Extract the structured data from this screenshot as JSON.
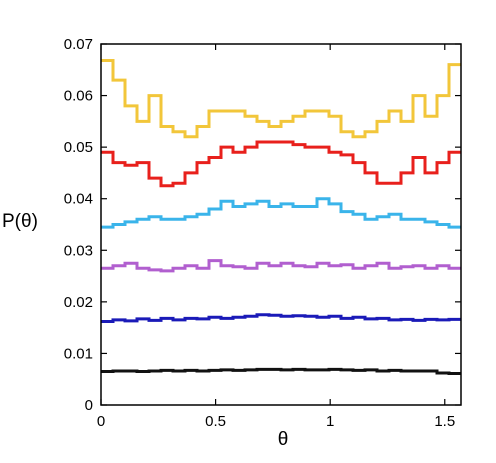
{
  "chart_data": {
    "type": "line",
    "step": true,
    "title": "",
    "xlabel": "θ",
    "ylabel": "P(θ)",
    "xlim": [
      0,
      1.5708
    ],
    "ylim": [
      0,
      0.07
    ],
    "xticks": [
      0,
      0.5,
      1,
      1.5
    ],
    "xtick_labels": [
      "0",
      "0.5",
      "1",
      "1.5"
    ],
    "yticks": [
      0,
      0.01,
      0.02,
      0.03,
      0.04,
      0.05,
      0.06,
      0.07
    ],
    "ytick_labels": [
      "0",
      "0.01",
      "0.02",
      "0.03",
      "0.04",
      "0.05",
      "0.06",
      "0.07"
    ],
    "grid": false,
    "legend": "none",
    "bin_edges": [
      0,
      0.0524,
      0.1047,
      0.1571,
      0.2094,
      0.2618,
      0.3142,
      0.3665,
      0.4189,
      0.4712,
      0.5236,
      0.576,
      0.6283,
      0.6807,
      0.733,
      0.7854,
      0.8378,
      0.8901,
      0.9425,
      0.9948,
      1.0472,
      1.0996,
      1.1519,
      1.2043,
      1.2566,
      1.309,
      1.3614,
      1.4137,
      1.4661,
      1.5184,
      1.5708
    ],
    "series": [
      {
        "color": "#f2c63a",
        "values": [
          0.0668,
          0.063,
          0.058,
          0.055,
          0.06,
          0.054,
          0.053,
          0.052,
          0.054,
          0.057,
          0.057,
          0.057,
          0.056,
          0.055,
          0.054,
          0.055,
          0.056,
          0.057,
          0.057,
          0.056,
          0.053,
          0.052,
          0.053,
          0.055,
          0.057,
          0.055,
          0.06,
          0.056,
          0.06,
          0.066
        ]
      },
      {
        "color": "#e8201c",
        "values": [
          0.049,
          0.047,
          0.0465,
          0.047,
          0.044,
          0.0425,
          0.043,
          0.045,
          0.047,
          0.048,
          0.05,
          0.049,
          0.05,
          0.051,
          0.051,
          0.051,
          0.0505,
          0.05,
          0.05,
          0.049,
          0.0485,
          0.047,
          0.045,
          0.043,
          0.043,
          0.045,
          0.048,
          0.045,
          0.047,
          0.049
        ]
      },
      {
        "color": "#3ab4ea",
        "values": [
          0.0345,
          0.035,
          0.0355,
          0.036,
          0.0365,
          0.036,
          0.036,
          0.0365,
          0.037,
          0.038,
          0.0395,
          0.0385,
          0.039,
          0.0395,
          0.0385,
          0.039,
          0.0385,
          0.0385,
          0.04,
          0.039,
          0.0375,
          0.037,
          0.036,
          0.0365,
          0.037,
          0.036,
          0.036,
          0.0355,
          0.035,
          0.0345
        ]
      },
      {
        "color": "#b15fcf",
        "values": [
          0.0265,
          0.027,
          0.0275,
          0.0265,
          0.0262,
          0.026,
          0.0265,
          0.027,
          0.0265,
          0.028,
          0.027,
          0.0268,
          0.0265,
          0.0275,
          0.027,
          0.0275,
          0.027,
          0.0268,
          0.0275,
          0.027,
          0.0272,
          0.0265,
          0.027,
          0.0275,
          0.0265,
          0.0268,
          0.027,
          0.0265,
          0.027,
          0.0265
        ]
      },
      {
        "color": "#1a1ab8",
        "values": [
          0.0162,
          0.0165,
          0.0163,
          0.0167,
          0.0164,
          0.0168,
          0.0165,
          0.0168,
          0.0167,
          0.017,
          0.0168,
          0.017,
          0.0172,
          0.0175,
          0.0174,
          0.0172,
          0.0173,
          0.0172,
          0.017,
          0.0172,
          0.0168,
          0.017,
          0.0167,
          0.0168,
          0.0165,
          0.0166,
          0.0164,
          0.0166,
          0.0165,
          0.0166
        ]
      },
      {
        "color": "#111111",
        "values": [
          0.0065,
          0.0066,
          0.0066,
          0.0065,
          0.0066,
          0.0067,
          0.0066,
          0.0067,
          0.0066,
          0.0067,
          0.0068,
          0.0067,
          0.0068,
          0.0069,
          0.0069,
          0.0068,
          0.0069,
          0.0068,
          0.0068,
          0.0069,
          0.0068,
          0.0067,
          0.0068,
          0.0066,
          0.0067,
          0.0066,
          0.0066,
          0.0066,
          0.0062,
          0.0061
        ]
      }
    ]
  }
}
